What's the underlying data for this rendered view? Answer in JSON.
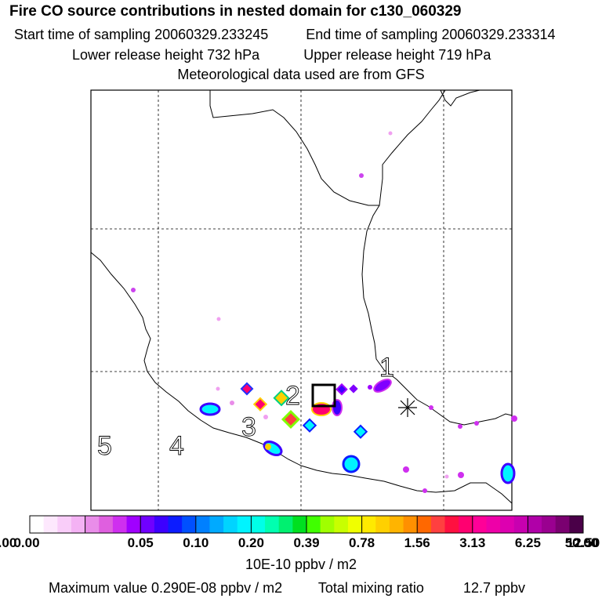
{
  "header": {
    "title": "Fire CO source contributions in nested domain for c130_060329",
    "start_label": "Start time of sampling 20060329.233245",
    "end_label": "End time of sampling 20060329.233314",
    "lower_label": "Lower release height  732 hPa",
    "upper_label": "Upper release height  719 hPa",
    "met_label": "Meteorological data used are from GFS"
  },
  "chart_data": {
    "type": "heatmap",
    "title": "Fire CO source contributions in nested domain for c130_060329",
    "map_labels": [
      "1",
      "2",
      "3",
      "4",
      "5"
    ],
    "grid": true,
    "colorbar": {
      "ticks": [
        "0.00",
        "0.05",
        "0.10",
        "0.20",
        "0.39",
        "0.78",
        "1.56",
        "3.13",
        "6.25",
        "12.50",
        "25.00",
        "50.00"
      ],
      "units": "10E-10 ppbv / m2",
      "colors": [
        [
          "#ffffff",
          "#fde8fd",
          "#f9cdf9",
          "#f4b2f4"
        ],
        [
          "#e98de9",
          "#df5fdf",
          "#cf2fef",
          "#a000ff"
        ],
        [
          "#7000ff",
          "#3c00ff",
          "#0c1cff",
          "#0050ff"
        ],
        [
          "#0080ff",
          "#00aaff",
          "#00d4ff",
          "#00f4ff"
        ],
        [
          "#00ffe8",
          "#00ffb0",
          "#00f070",
          "#00e020"
        ],
        [
          "#40ff00",
          "#a0ff00",
          "#c8ff00",
          "#f0ff00"
        ],
        [
          "#ffea00",
          "#ffd000",
          "#ffb400",
          "#ff9000"
        ],
        [
          "#ff6800",
          "#ff4040",
          "#ff1040",
          "#ff0070"
        ],
        [
          "#ff0098",
          "#ee00a8",
          "#dd00b0",
          "#c800b0"
        ],
        [
          "#b000a8",
          "#9a0090",
          "#7a0070",
          "#4a0048"
        ]
      ]
    }
  },
  "footer": {
    "max_label": "Maximum value  0.290E-08 ppbv / m2",
    "total_label": "Total mixing ratio",
    "total_value": "12.7 ppbv"
  }
}
